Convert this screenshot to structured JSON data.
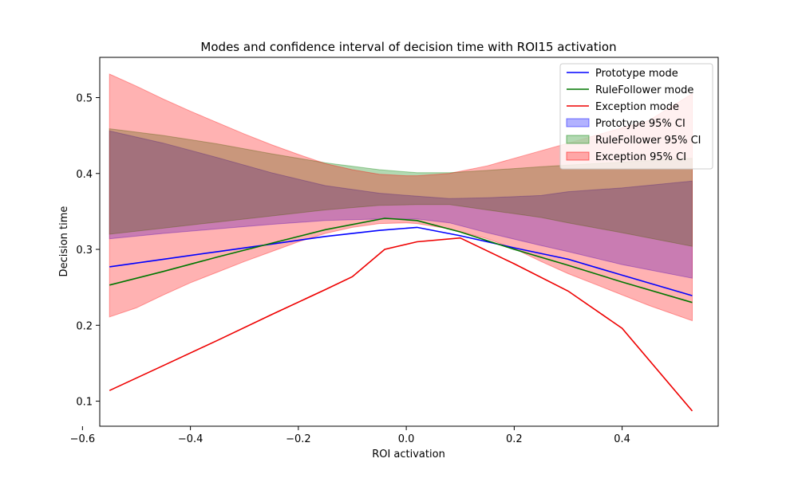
{
  "chart_data": {
    "type": "line",
    "title": "Modes and confidence interval of decision time with ROI15 activation",
    "xlabel": "ROI activation",
    "ylabel": "Decision time",
    "xlim": [
      -0.568,
      0.578
    ],
    "ylim": [
      0.067,
      0.553
    ],
    "xticks": [
      -0.6,
      -0.4,
      -0.2,
      0.0,
      0.2,
      0.4
    ],
    "xtick_labels": [
      "−0.6",
      "−0.4",
      "−0.2",
      "0.0",
      "0.2",
      "0.4"
    ],
    "yticks": [
      0.1,
      0.2,
      0.3,
      0.4,
      0.5
    ],
    "ytick_labels": [
      "0.1",
      "0.2",
      "0.3",
      "0.4",
      "0.5"
    ],
    "grid": false,
    "legend_position": "top-right",
    "series": [
      {
        "name": "Prototype mode",
        "color": "#0000ff",
        "x": [
          -0.55,
          -0.45,
          -0.35,
          -0.25,
          -0.15,
          -0.05,
          0.02,
          0.1,
          0.2,
          0.3,
          0.4,
          0.53
        ],
        "y": [
          0.277,
          0.287,
          0.297,
          0.307,
          0.317,
          0.325,
          0.329,
          0.318,
          0.302,
          0.287,
          0.266,
          0.239
        ]
      },
      {
        "name": "RuleFollower mode",
        "color": "#007700",
        "x": [
          -0.55,
          -0.45,
          -0.35,
          -0.25,
          -0.15,
          -0.04,
          0.02,
          0.1,
          0.2,
          0.3,
          0.4,
          0.53
        ],
        "y": [
          0.253,
          0.271,
          0.29,
          0.308,
          0.326,
          0.341,
          0.338,
          0.323,
          0.3,
          0.279,
          0.257,
          0.23
        ]
      },
      {
        "name": "Exception mode",
        "color": "#ee0000",
        "x": [
          -0.55,
          -0.45,
          -0.35,
          -0.25,
          -0.15,
          -0.1,
          -0.04,
          0.02,
          0.1,
          0.2,
          0.3,
          0.4,
          0.53
        ],
        "y": [
          0.114,
          0.147,
          0.18,
          0.214,
          0.247,
          0.264,
          0.3,
          0.31,
          0.315,
          0.281,
          0.245,
          0.196,
          0.087
        ]
      }
    ],
    "bands": [
      {
        "name": "Prototype 95% CI",
        "color": "#0000ff",
        "opacity": 0.3,
        "x": [
          -0.55,
          -0.45,
          -0.35,
          -0.25,
          -0.15,
          -0.05,
          0.02,
          0.08,
          0.15,
          0.25,
          0.3,
          0.4,
          0.53
        ],
        "lower": [
          0.314,
          0.321,
          0.327,
          0.333,
          0.338,
          0.34,
          0.34,
          0.335,
          0.322,
          0.305,
          0.297,
          0.28,
          0.262
        ],
        "upper": [
          0.456,
          0.44,
          0.421,
          0.401,
          0.384,
          0.374,
          0.37,
          0.367,
          0.368,
          0.371,
          0.376,
          0.381,
          0.39
        ]
      },
      {
        "name": "RuleFollower 95% CI",
        "color": "#008000",
        "opacity": 0.3,
        "x": [
          -0.55,
          -0.45,
          -0.35,
          -0.25,
          -0.15,
          -0.05,
          0.02,
          0.08,
          0.15,
          0.25,
          0.3,
          0.4,
          0.53
        ],
        "lower": [
          0.32,
          0.328,
          0.336,
          0.344,
          0.352,
          0.358,
          0.359,
          0.359,
          0.352,
          0.342,
          0.335,
          0.322,
          0.304
        ],
        "upper": [
          0.459,
          0.45,
          0.439,
          0.426,
          0.414,
          0.405,
          0.401,
          0.401,
          0.404,
          0.409,
          0.411,
          0.415,
          0.42
        ]
      },
      {
        "name": "Exception 95% CI",
        "color": "#ff0000",
        "opacity": 0.3,
        "x": [
          -0.55,
          -0.5,
          -0.45,
          -0.4,
          -0.35,
          -0.3,
          -0.25,
          -0.2,
          -0.15,
          -0.1,
          -0.05,
          0.0,
          0.02,
          0.08,
          0.15,
          0.2,
          0.25,
          0.3,
          0.35,
          0.4,
          0.45,
          0.53
        ],
        "lower": [
          0.211,
          0.223,
          0.24,
          0.256,
          0.27,
          0.284,
          0.297,
          0.31,
          0.321,
          0.329,
          0.334,
          0.335,
          0.334,
          0.327,
          0.314,
          0.301,
          0.284,
          0.268,
          0.254,
          0.24,
          0.226,
          0.206
        ],
        "upper": [
          0.531,
          0.515,
          0.498,
          0.482,
          0.467,
          0.452,
          0.438,
          0.425,
          0.413,
          0.405,
          0.399,
          0.397,
          0.397,
          0.4,
          0.41,
          0.42,
          0.43,
          0.44,
          0.45,
          0.46,
          0.47,
          0.505
        ]
      }
    ]
  }
}
